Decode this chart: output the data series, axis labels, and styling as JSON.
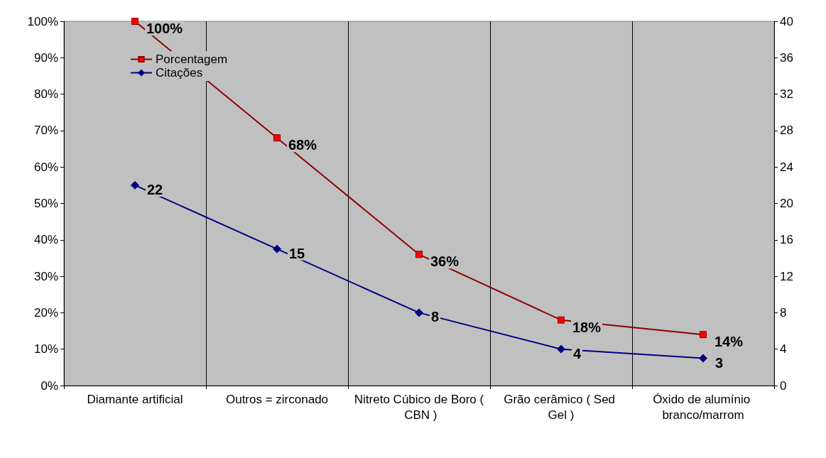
{
  "chart_data": {
    "type": "line",
    "categories": [
      "Diamante artificial",
      "Outros = zirconado",
      "Nitreto Cúbico de Boro ( CBN )",
      "Grão cerâmico ( Sed Gel )",
      "Óxido de alumínio branco/marrom"
    ],
    "series": [
      {
        "name": "Porcentagem",
        "color": "#8b0000",
        "marker": "square",
        "values": [
          100,
          68,
          36,
          18,
          14
        ],
        "value_labels": [
          "100%",
          "68%",
          "36%",
          "18%",
          "14%"
        ]
      },
      {
        "name": "Citações",
        "color": "#000080",
        "marker": "diamond",
        "axis": "y2",
        "values": [
          22,
          15,
          8,
          4,
          3
        ],
        "value_labels": [
          "22",
          "15",
          "8",
          "4",
          "3"
        ]
      }
    ],
    "ylim": [
      0,
      100
    ],
    "yticks": [
      {
        "value": 0,
        "label": "0%"
      },
      {
        "value": 10,
        "label": "10%"
      },
      {
        "value": 20,
        "label": "20%"
      },
      {
        "value": 30,
        "label": "30%"
      },
      {
        "value": 40,
        "label": "40%"
      },
      {
        "value": 50,
        "label": "50%"
      },
      {
        "value": 60,
        "label": "60%"
      },
      {
        "value": 70,
        "label": "70%"
      },
      {
        "value": 80,
        "label": "80%"
      },
      {
        "value": 90,
        "label": "90%"
      },
      {
        "value": 100,
        "label": "100%"
      }
    ],
    "y2lim": [
      0,
      40
    ],
    "y2ticks": [
      0,
      4,
      8,
      12,
      16,
      20,
      24,
      28,
      32,
      36,
      40
    ],
    "grid": "x",
    "legend": "top left",
    "line_style": "solid"
  }
}
